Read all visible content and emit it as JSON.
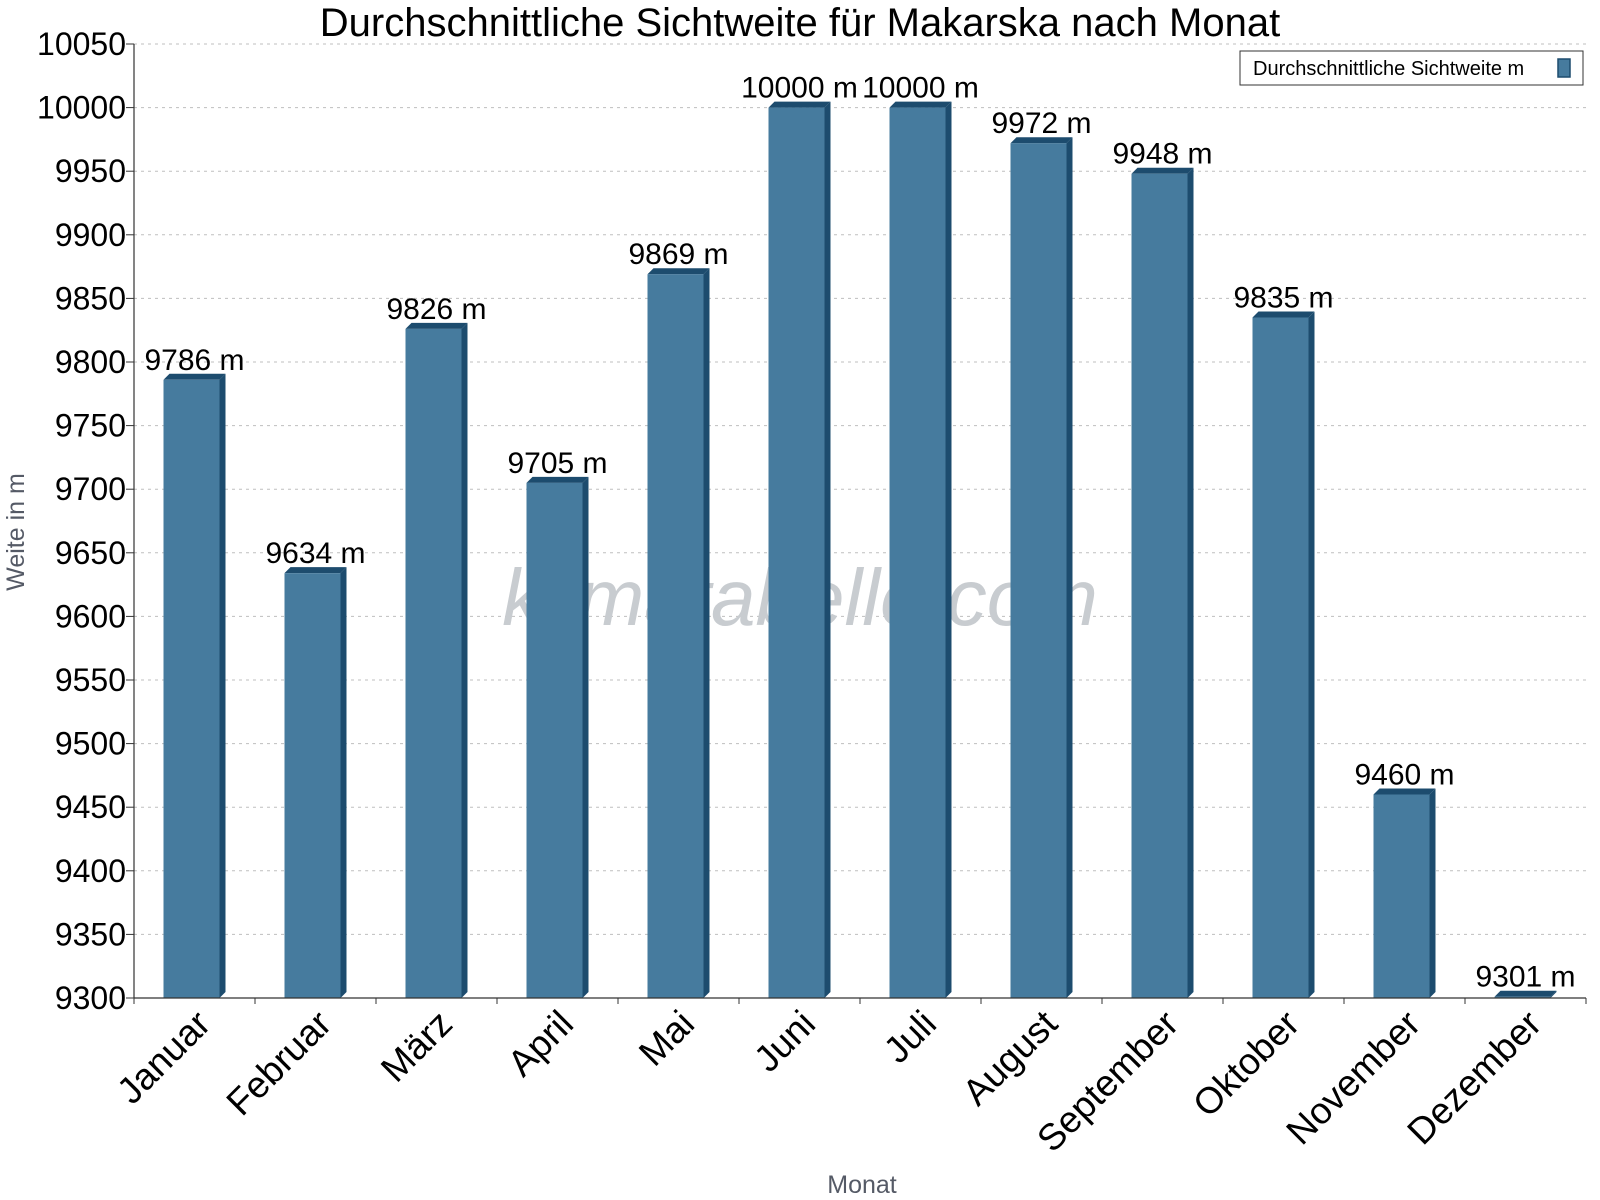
{
  "chart_data": {
    "type": "bar",
    "title": "Durchschnittliche Sichtweite für Makarska nach Monat",
    "xlabel": "Monat",
    "ylabel": "Weite in m",
    "categories": [
      "Januar",
      "Februar",
      "März",
      "April",
      "Mai",
      "Juni",
      "Juli",
      "August",
      "September",
      "Oktober",
      "November",
      "Dezember"
    ],
    "series": [
      {
        "name": "Durchschnittliche Sichtweite m",
        "values": [
          9786,
          9634,
          9826,
          9705,
          9869,
          10000,
          10000,
          9972,
          9948,
          9835,
          9460,
          9301
        ],
        "labels": [
          "9786 m",
          "9634 m",
          "9826 m",
          "9705 m",
          "9869 m",
          "10000 m",
          "10000 m",
          "9972 m",
          "9948 m",
          "9835 m",
          "9460 m",
          "9301 m"
        ]
      }
    ],
    "ylim": [
      9300,
      10050
    ],
    "yticks": [
      9300,
      9350,
      9400,
      9450,
      9500,
      9550,
      9600,
      9650,
      9700,
      9750,
      9800,
      9850,
      9900,
      9950,
      10000,
      10050
    ],
    "grid": true,
    "legend_position": "top-right",
    "bar_color": "#467b9e",
    "bar_side_color": "#1d4c6e",
    "watermark": "klimatabelle.com"
  }
}
